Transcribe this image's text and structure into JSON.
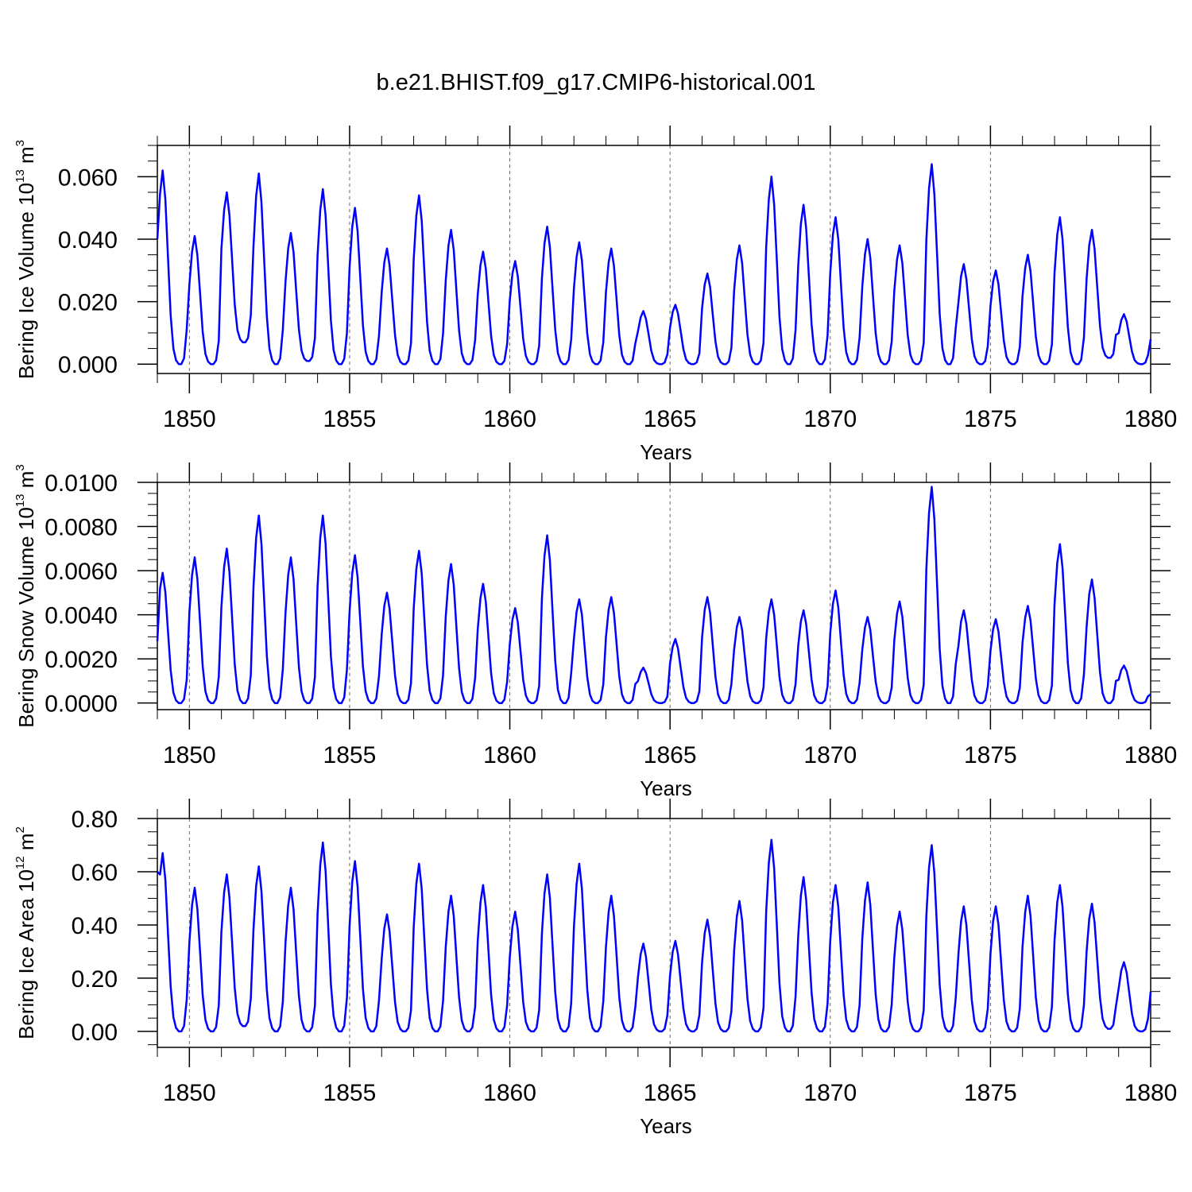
{
  "title": "b.e21.BHIST.f09_g17.CMIP6-historical.001",
  "colors": {
    "line": "#0000ff",
    "axis": "#000000",
    "grid": "#666666"
  },
  "chart_data": [
    {
      "type": "line",
      "ylabel": "Bering Ice Volume",
      "yunit_base": "10",
      "yunit_exp": "13",
      "yunit_sym": "m",
      "yunit_pow": "3",
      "xlabel": "Years",
      "xlim": [
        1849.0,
        1880.0
      ],
      "ylim": [
        -0.003,
        0.07
      ],
      "xticks": [
        1850,
        1855,
        1860,
        1865,
        1870,
        1875,
        1880
      ],
      "xtick_labels": [
        "1850",
        "1855",
        "1860",
        "1865",
        "1870",
        "1875",
        "1880"
      ],
      "yticks": [
        0.0,
        0.02,
        0.04,
        0.06
      ],
      "ytick_labels": [
        "0.000",
        "0.020",
        "0.040",
        "0.060"
      ],
      "peaks": [
        0.062,
        0.041,
        0.055,
        0.061,
        0.042,
        0.056,
        0.05,
        0.037,
        0.054,
        0.043,
        0.036,
        0.033,
        0.044,
        0.039,
        0.037,
        0.017,
        0.019,
        0.029,
        0.038,
        0.06,
        0.051,
        0.047,
        0.04,
        0.038,
        0.064,
        0.032,
        0.03,
        0.035,
        0.047,
        0.043,
        0.016
      ],
      "minima": [
        0.0,
        0.0,
        0.007,
        0.0,
        0.001,
        0.0,
        0.0,
        0.0,
        0.0,
        0.0,
        0.0,
        0.0,
        0.0,
        0.0,
        0.0,
        0.0,
        0.0,
        0.0,
        0.0,
        0.0,
        0.0,
        0.0,
        0.0,
        0.0,
        0.0,
        0.0,
        0.0,
        0.0,
        0.0,
        0.002,
        0.0
      ],
      "start_value": 0.04,
      "end_value": 0.008
    },
    {
      "type": "line",
      "ylabel": "Bering Snow Volume",
      "yunit_base": "10",
      "yunit_exp": "13",
      "yunit_sym": "m",
      "yunit_pow": "3",
      "xlabel": "Years",
      "xlim": [
        1849.0,
        1880.0
      ],
      "ylim": [
        -0.0003,
        0.01
      ],
      "xticks": [
        1850,
        1855,
        1860,
        1865,
        1870,
        1875,
        1880
      ],
      "xtick_labels": [
        "1850",
        "1855",
        "1860",
        "1865",
        "1870",
        "1875",
        "1880"
      ],
      "yticks": [
        0.0,
        0.002,
        0.004,
        0.006,
        0.008,
        0.01
      ],
      "ytick_labels": [
        "0.0000",
        "0.0020",
        "0.0040",
        "0.0060",
        "0.0080",
        "0.0100"
      ],
      "peaks": [
        0.0059,
        0.0066,
        0.007,
        0.0085,
        0.0066,
        0.0085,
        0.0067,
        0.005,
        0.0069,
        0.0063,
        0.0054,
        0.0043,
        0.0076,
        0.0047,
        0.0048,
        0.0016,
        0.0029,
        0.0048,
        0.0039,
        0.0047,
        0.0042,
        0.0051,
        0.0039,
        0.0046,
        0.0098,
        0.0042,
        0.0038,
        0.0044,
        0.0072,
        0.0056,
        0.0017
      ],
      "minima": [
        0.0,
        0.0,
        0.0,
        0.0,
        0.0,
        0.0,
        0.0,
        0.0,
        0.0,
        0.0,
        0.0,
        0.0,
        0.0,
        0.0,
        0.0,
        0.0,
        0.0,
        0.0,
        0.0,
        0.0,
        0.0,
        0.0,
        0.0,
        0.0,
        0.0,
        0.0,
        0.0,
        0.0,
        0.0,
        0.0,
        0.0
      ],
      "start_value": 0.0028,
      "end_value": 0.0004
    },
    {
      "type": "line",
      "ylabel": "Bering Ice Area",
      "yunit_base": "10",
      "yunit_exp": "12",
      "yunit_sym": "m",
      "yunit_pow": "2",
      "xlabel": "Years",
      "xlim": [
        1849.0,
        1880.0
      ],
      "ylim": [
        -0.06,
        0.8
      ],
      "xticks": [
        1850,
        1855,
        1860,
        1865,
        1870,
        1875,
        1880
      ],
      "xtick_labels": [
        "1850",
        "1855",
        "1860",
        "1865",
        "1870",
        "1875",
        "1880"
      ],
      "yticks": [
        0.0,
        0.2,
        0.4,
        0.6,
        0.8
      ],
      "ytick_labels": [
        "0.00",
        "0.20",
        "0.40",
        "0.60",
        "0.80"
      ],
      "peaks": [
        0.67,
        0.54,
        0.59,
        0.62,
        0.54,
        0.71,
        0.64,
        0.44,
        0.63,
        0.51,
        0.55,
        0.45,
        0.59,
        0.63,
        0.51,
        0.33,
        0.34,
        0.42,
        0.49,
        0.72,
        0.58,
        0.55,
        0.56,
        0.45,
        0.7,
        0.47,
        0.47,
        0.51,
        0.55,
        0.48,
        0.26
      ],
      "minima": [
        0.0,
        0.0,
        0.02,
        0.0,
        0.0,
        0.0,
        0.0,
        0.0,
        0.0,
        0.0,
        0.0,
        0.0,
        0.0,
        0.0,
        0.0,
        0.0,
        0.0,
        0.0,
        0.0,
        0.0,
        0.0,
        0.0,
        0.0,
        0.0,
        0.0,
        0.0,
        0.0,
        0.0,
        0.0,
        0.01,
        0.0
      ],
      "start_value": 0.6,
      "end_value": 0.15
    }
  ]
}
